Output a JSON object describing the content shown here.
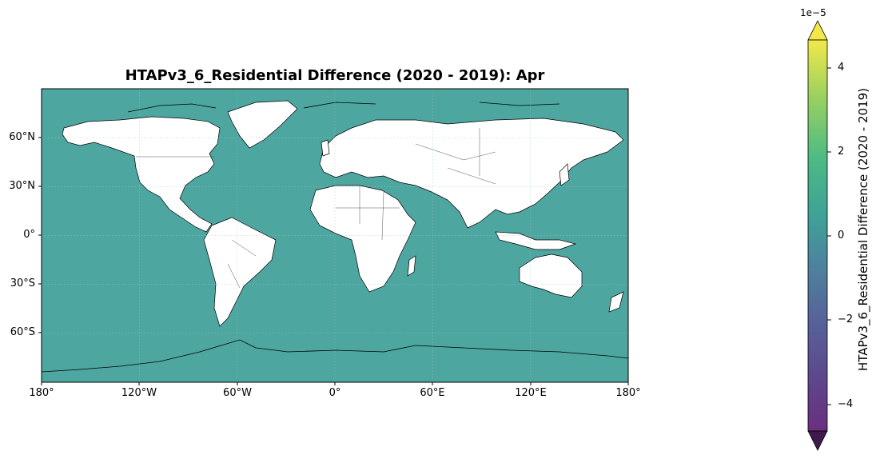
{
  "title": "HTAPv3_6_Residential Difference (2020 - 2019): Apr",
  "map": {
    "projection": "PlateCarree",
    "ocean_color": "#4da6a0",
    "land_color": "#ffffff",
    "coast_color": "#000000",
    "border_color": "#555555",
    "gridlines": true,
    "lat_ticks": [
      "60°N",
      "30°N",
      "0°",
      "30°S",
      "60°S"
    ],
    "lon_ticks": [
      "180°",
      "120°W",
      "60°W",
      "0°",
      "60°E",
      "120°E",
      "180°"
    ]
  },
  "colorbar": {
    "label": "HTAPv3_6_Residential Difference (2020 - 2019)",
    "exponent": "1e−5",
    "colormap": "viridis",
    "ticks": [
      "4",
      "2",
      "0",
      "−2",
      "−4"
    ],
    "range": [
      -5,
      5
    ],
    "extend": "both"
  },
  "chart_data": {
    "type": "heatmap",
    "title": "HTAPv3_6_Residential Difference (2020 - 2019): Apr",
    "x_ticks": [
      "180°",
      "120°W",
      "60°W",
      "0°",
      "60°E",
      "120°E",
      "180°"
    ],
    "y_ticks": [
      "60°N",
      "30°N",
      "0°",
      "30°S",
      "60°S"
    ],
    "xlim": [
      -180,
      180
    ],
    "ylim": [
      -90,
      90
    ],
    "colorbar_range": [
      -5e-05,
      5e-05
    ],
    "colorbar_label": "HTAPv3_6_Residential Difference (2020 - 2019)",
    "dominant_value": 0
  }
}
